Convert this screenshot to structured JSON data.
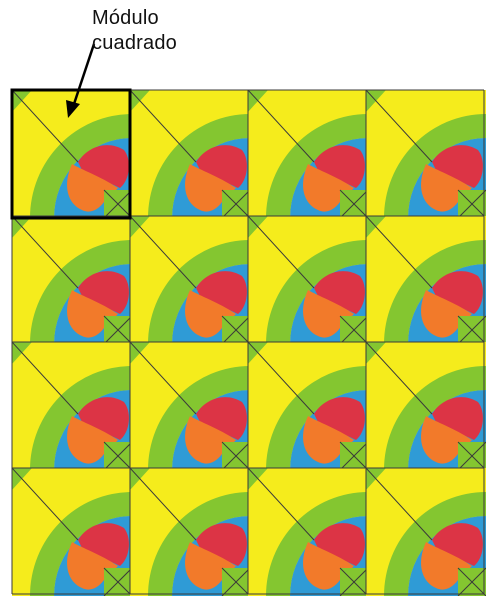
{
  "label": {
    "line1": "Módulo",
    "line2": "cuadrado"
  },
  "grid": {
    "rows": 4,
    "columns": 4
  },
  "colors": {
    "yellow": "#f5ec1c",
    "green": "#84c630",
    "blue": "#2f9bd6",
    "red": "#dc3445",
    "orange": "#f27a2a",
    "line": "#3a3a3a",
    "outline": "#000000"
  }
}
